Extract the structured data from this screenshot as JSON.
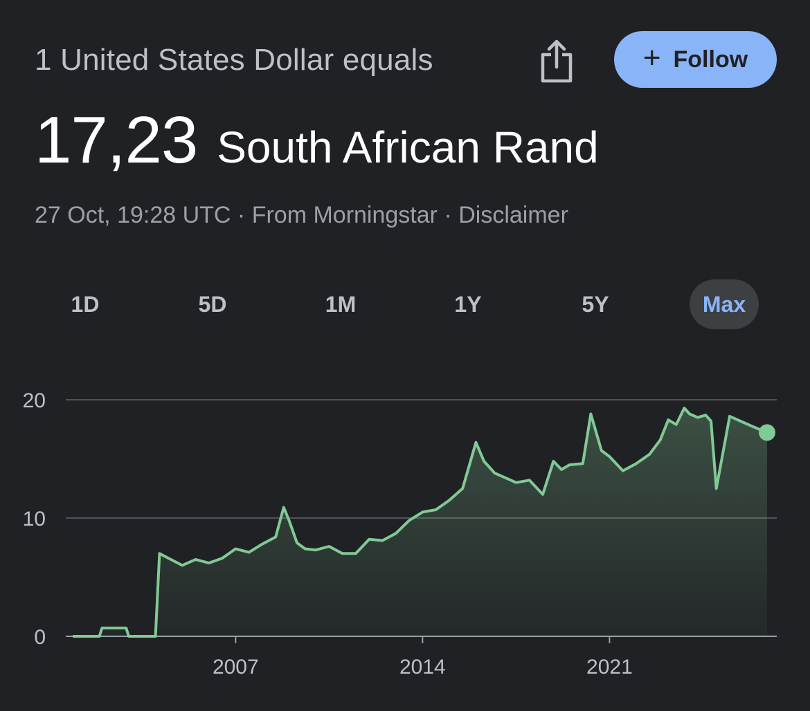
{
  "header": {
    "conversion_text": "1 United States Dollar equals",
    "follow_label": "Follow",
    "share_icon": "share-icon"
  },
  "rate": {
    "value": "17,23",
    "currency": "South African Rand"
  },
  "meta": {
    "timestamp": "27 Oct, 19:28 UTC",
    "separator": "·",
    "source": "From Morningstar",
    "disclaimer": "Disclaimer"
  },
  "ranges": [
    {
      "label": "1D",
      "active": false
    },
    {
      "label": "5D",
      "active": false
    },
    {
      "label": "1M",
      "active": false
    },
    {
      "label": "1Y",
      "active": false
    },
    {
      "label": "5Y",
      "active": false
    },
    {
      "label": "Max",
      "active": true
    }
  ],
  "colors": {
    "background": "#202124",
    "accent": "#8ab4f8",
    "line": "#81c995",
    "grid": "#5f6368"
  },
  "chart_data": {
    "type": "area",
    "title": "",
    "xlabel": "",
    "ylabel": "",
    "x_ticks": [
      "2007",
      "2014",
      "2021"
    ],
    "y_ticks": [
      0,
      10,
      20
    ],
    "ylim": [
      0,
      20
    ],
    "xlim": [
      2000.9,
      2026.9
    ],
    "grid": true,
    "series": [
      {
        "x": [
          2000.9,
          2001.9,
          2002.0,
          2002.9,
          2003.0,
          2003.9,
          2004.0,
          2004.15,
          2004.4,
          2005.0,
          2005.5,
          2006.0,
          2006.5,
          2007.0,
          2007.5,
          2008.0,
          2008.5,
          2008.8,
          2009.0,
          2009.3,
          2009.6,
          2010.0,
          2010.5,
          2011.0,
          2011.5,
          2012.0,
          2012.5,
          2013.0,
          2013.5,
          2014.0,
          2014.5,
          2015.0,
          2015.5,
          2016.0,
          2016.3,
          2016.7,
          2017.0,
          2017.5,
          2018.0,
          2018.5,
          2018.9,
          2019.2,
          2019.5,
          2020.0,
          2020.3,
          2020.7,
          2021.0,
          2021.5,
          2022.0,
          2022.5,
          2022.9,
          2023.2,
          2023.5,
          2023.8,
          2024.0,
          2024.3,
          2024.6,
          2024.8,
          2025.0,
          2025.5,
          2026.0,
          2026.4,
          2026.9
        ],
        "y": [
          0,
          0,
          0.7,
          0.7,
          0,
          0,
          0,
          7.0,
          6.7,
          6.0,
          6.5,
          6.2,
          6.6,
          7.4,
          7.1,
          7.8,
          8.4,
          10.9,
          9.8,
          7.9,
          7.4,
          7.3,
          7.6,
          7.0,
          7.0,
          8.2,
          8.1,
          8.7,
          9.8,
          10.5,
          10.7,
          11.5,
          12.5,
          16.4,
          14.8,
          13.8,
          13.5,
          13.0,
          13.2,
          12.0,
          14.8,
          14.1,
          14.5,
          14.6,
          18.8,
          15.7,
          15.2,
          14.0,
          14.6,
          15.4,
          16.6,
          18.3,
          17.9,
          19.3,
          18.8,
          18.5,
          18.7,
          18.2,
          12.5,
          18.6,
          18.1,
          17.7,
          17.23
        ]
      }
    ]
  }
}
